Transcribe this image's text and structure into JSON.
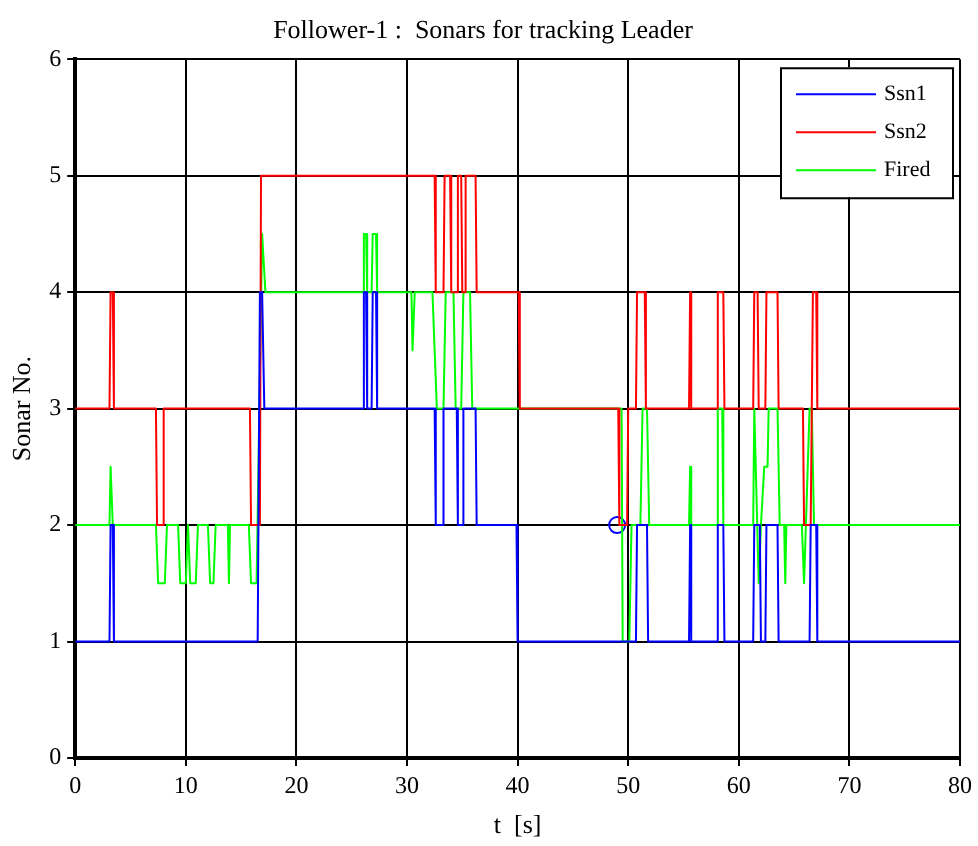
{
  "chart_data": {
    "type": "line",
    "title": "Follower-1 :  Sonars for tracking Leader",
    "xlabel": "t  [s]",
    "ylabel": "Sonar No.",
    "xlim": [
      0,
      80
    ],
    "xticks": [
      0,
      10,
      20,
      30,
      40,
      50,
      60,
      70,
      80
    ],
    "ylim": [
      0,
      6
    ],
    "yticks": [
      0,
      1,
      2,
      3,
      4,
      5,
      6
    ],
    "grid": true,
    "legend": "top right",
    "marker": "none",
    "series": [
      {
        "name": "Ssn1",
        "color": "#0000ff",
        "x": [
          0,
          3.1,
          3.2,
          3.4,
          3.5,
          16.5,
          16.7,
          16.9,
          17.1,
          26.0,
          26.1,
          26.3,
          26.4,
          26.8,
          26.9,
          27.2,
          27.3,
          32.5,
          32.6,
          33.2,
          33.3,
          34.5,
          34.6,
          35.0,
          35.1,
          36.2,
          36.3,
          39.9,
          40.0,
          50.7,
          50.8,
          51.7,
          51.8,
          55.5,
          55.6,
          55.7,
          58.0,
          58.1,
          58.6,
          58.7,
          61.3,
          61.4,
          61.9,
          62.0,
          62.4,
          62.5,
          63.5,
          63.6,
          66.4,
          66.5,
          67.0,
          67.1,
          80
        ],
        "values": [
          1,
          1,
          2,
          2,
          1,
          1,
          4,
          4,
          3,
          3,
          4,
          4,
          3,
          3,
          4,
          4,
          3,
          3,
          2,
          2,
          3,
          3,
          2,
          2,
          3,
          3,
          2,
          2,
          1,
          1,
          2,
          2,
          1,
          1,
          2,
          1,
          1,
          2,
          2,
          1,
          1,
          2,
          2,
          1,
          1,
          2,
          2,
          1,
          1,
          2,
          2,
          1,
          1
        ]
      },
      {
        "name": "Ssn2",
        "color": "#ff0000",
        "x": [
          0,
          3.1,
          3.2,
          3.4,
          3.5,
          7.3,
          7.4,
          7.9,
          8.0,
          15.8,
          15.9,
          16.7,
          16.8,
          32.5,
          32.6,
          33.3,
          33.4,
          33.9,
          34.0,
          34.5,
          34.6,
          34.9,
          35.0,
          35.2,
          35.3,
          36.2,
          36.3,
          40.1,
          40.2,
          49.1,
          49.2,
          49.9,
          50.0,
          50.7,
          50.8,
          51.5,
          51.6,
          55.5,
          55.6,
          55.7,
          58.0,
          58.1,
          58.6,
          58.7,
          61.3,
          61.4,
          61.7,
          61.8,
          62.4,
          62.5,
          63.5,
          63.6,
          65.8,
          65.9,
          66.5,
          66.7,
          67.0,
          67.1,
          80
        ],
        "values": [
          3,
          3,
          4,
          4,
          3,
          3,
          2,
          2,
          3,
          3,
          2,
          2,
          5,
          5,
          4,
          4,
          5,
          5,
          4,
          4,
          5,
          5,
          4,
          4,
          5,
          5,
          4,
          4,
          3,
          3,
          2,
          2,
          3,
          3,
          4,
          4,
          3,
          3,
          4,
          3,
          3,
          4,
          4,
          3,
          3,
          4,
          4,
          3,
          3,
          4,
          4,
          3,
          3,
          2,
          2,
          4,
          4,
          3,
          3
        ]
      },
      {
        "name": "Fired",
        "color": "#00ff00",
        "x": [
          0,
          3.1,
          3.2,
          3.4,
          7.3,
          7.5,
          8.1,
          8.3,
          9.3,
          9.5,
          10.0,
          10.2,
          10.4,
          10.9,
          11.1,
          12.0,
          12.2,
          12.5,
          12.7,
          13.8,
          13.9,
          14.0,
          15.7,
          15.9,
          16.4,
          16.9,
          17.2,
          26.0,
          26.1,
          26.3,
          26.4,
          26.8,
          26.9,
          27.2,
          27.3,
          30.4,
          30.5,
          30.6,
          30.7,
          32.3,
          32.5,
          32.7,
          33.3,
          33.5,
          34.2,
          34.4,
          34.9,
          35.1,
          35.7,
          35.9,
          49.4,
          49.5,
          50.1,
          50.3,
          51.1,
          51.3,
          51.7,
          51.9,
          55.5,
          55.6,
          55.7,
          58.0,
          58.1,
          58.5,
          58.6,
          61.3,
          61.4,
          61.8,
          62.0,
          62.3,
          62.6,
          62.7,
          63.5,
          63.7,
          64.1,
          64.2,
          64.3,
          65.7,
          65.9,
          66.4,
          66.6,
          66.8,
          80
        ],
        "values": [
          2,
          2,
          2.5,
          2,
          2,
          1.5,
          1.5,
          2,
          2,
          1.5,
          1.5,
          2,
          1.5,
          1.5,
          2,
          2,
          1.5,
          1.5,
          2,
          2,
          1.5,
          2,
          2,
          1.5,
          1.5,
          4.5,
          4,
          4,
          4.5,
          4.5,
          4,
          4,
          4.5,
          4.5,
          4,
          4,
          3.5,
          3.5,
          4,
          4,
          3.5,
          3,
          3,
          4,
          4,
          3,
          3,
          4,
          4,
          3,
          3,
          1,
          1,
          2,
          2,
          3,
          3,
          2,
          2,
          2.5,
          2,
          2,
          3,
          3,
          2,
          2,
          3,
          1.5,
          2,
          2.5,
          2.5,
          3,
          3,
          2,
          2,
          1.5,
          2,
          2,
          1.5,
          3,
          3,
          2,
          2
        ]
      },
      {
        "type": "scatter",
        "marker": "circle",
        "color": "#0000ff",
        "x": [
          49
        ],
        "values": [
          2
        ]
      }
    ]
  }
}
